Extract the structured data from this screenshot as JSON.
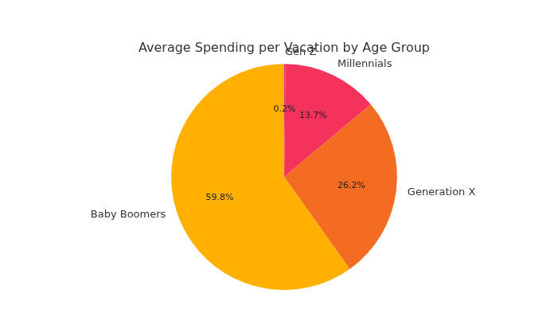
{
  "chart_data": {
    "type": "pie",
    "title": "Average Spending per Vacation by Age Group",
    "categories": [
      "Gen Z",
      "Millennials",
      "Generation X",
      "Baby Boomers"
    ],
    "values": [
      0.2,
      13.7,
      26.2,
      59.8
    ],
    "value_labels": [
      "0.2%",
      "13.7%",
      "26.2%",
      "59.8%"
    ],
    "colors": [
      "#d6337f",
      "#f5325b",
      "#f46b22",
      "#ffb000"
    ],
    "data_labels": true
  }
}
